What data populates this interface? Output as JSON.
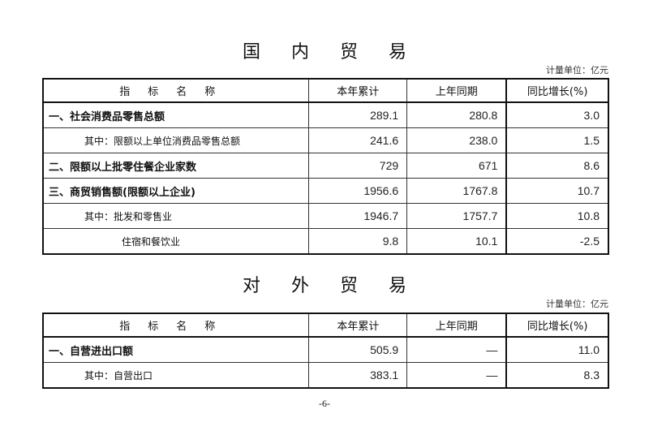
{
  "domestic": {
    "title": [
      "国",
      "内",
      "贸",
      "易"
    ],
    "unit": "计量单位：亿元",
    "headers": [
      "指标名称",
      "本年累计",
      "上年同期",
      "同比增长(%)"
    ],
    "rows": [
      {
        "name": "一、社会消费品零售总额",
        "current": "289.1",
        "previous": "280.8",
        "growth": "3.0",
        "style": "bold"
      },
      {
        "name": "其中：限额以上单位消费品零售总额",
        "current": "241.6",
        "previous": "238.0",
        "growth": "1.5",
        "style": "sub1"
      },
      {
        "name": "二、限额以上批零住餐企业家数",
        "current": "729",
        "previous": "671",
        "growth": "8.6",
        "style": "bold"
      },
      {
        "name": "三、商贸销售额(限额以上企业)",
        "current": "1956.6",
        "previous": "1767.8",
        "growth": "10.7",
        "style": "bold"
      },
      {
        "name": "其中：批发和零售业",
        "current": "1946.7",
        "previous": "1757.7",
        "growth": "10.8",
        "style": "sub1"
      },
      {
        "name": "住宿和餐饮业",
        "current": "9.8",
        "previous": "10.1",
        "growth": "-2.5",
        "style": "sub2"
      }
    ]
  },
  "foreign": {
    "title": [
      "对",
      "外",
      "贸",
      "易"
    ],
    "unit": "计量单位：亿元",
    "headers": [
      "指标名称",
      "本年累计",
      "上年同期",
      "同比增长(%)"
    ],
    "rows": [
      {
        "name": "一、自营进出口额",
        "current": "505.9",
        "previous": "—",
        "growth": "11.0",
        "style": "bold"
      },
      {
        "name": "其中：自营出口",
        "current": "383.1",
        "previous": "—",
        "growth": "8.3",
        "style": "sub1"
      }
    ]
  },
  "page_number": "-6-"
}
